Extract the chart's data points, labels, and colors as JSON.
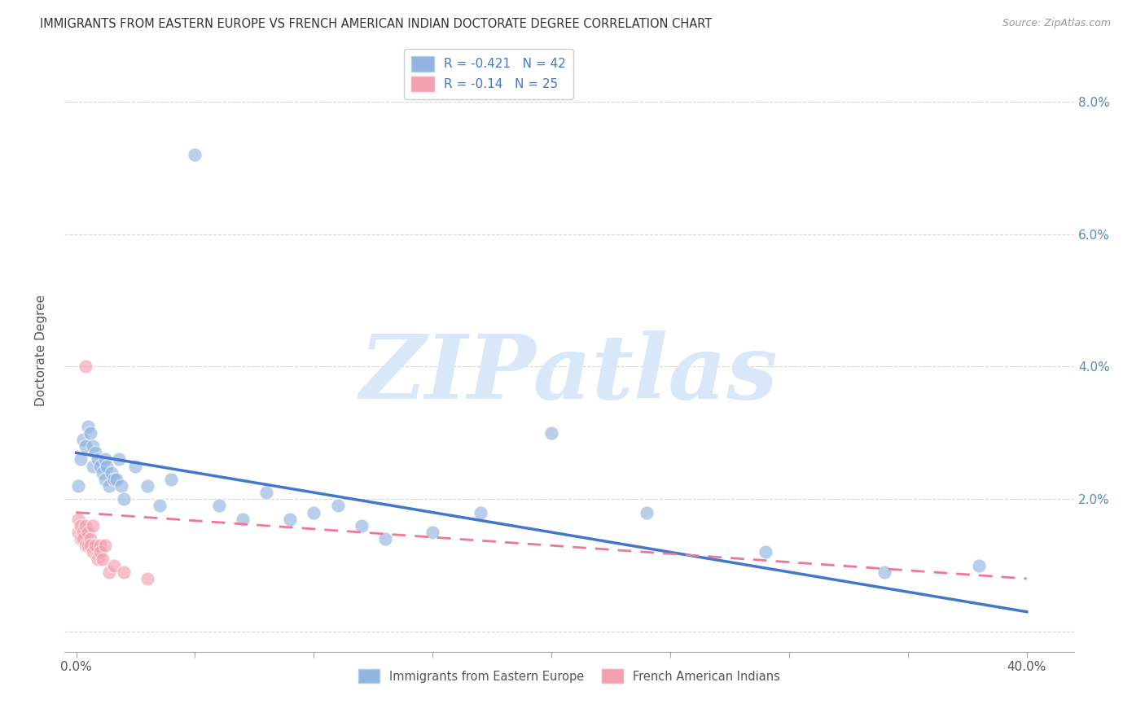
{
  "title": "IMMIGRANTS FROM EASTERN EUROPE VS FRENCH AMERICAN INDIAN DOCTORATE DEGREE CORRELATION CHART",
  "source": "Source: ZipAtlas.com",
  "ylabel": "Doctorate Degree",
  "xlim": [
    -0.005,
    0.42
  ],
  "ylim": [
    -0.003,
    0.088
  ],
  "x_tick_vals": [
    0.0,
    0.05,
    0.1,
    0.15,
    0.2,
    0.25,
    0.3,
    0.35,
    0.4
  ],
  "y_tick_vals": [
    0.0,
    0.02,
    0.04,
    0.06,
    0.08
  ],
  "y_tick_labels_right": [
    "",
    "2.0%",
    "4.0%",
    "6.0%",
    "8.0%"
  ],
  "blue_R": -0.421,
  "blue_N": 42,
  "pink_R": -0.14,
  "pink_N": 25,
  "blue_dot_color": "#92B4E0",
  "pink_dot_color": "#F4A0B0",
  "blue_line_color": "#4477CC",
  "pink_line_color": "#EE7799",
  "grid_color": "#CCCCCC",
  "watermark_color": "#D8E8F8",
  "watermark_text": "ZIPatlas",
  "legend_label_blue": "Immigrants from Eastern Europe",
  "legend_label_pink": "French American Indians",
  "blue_line_x0": 0.0,
  "blue_line_y0": 0.027,
  "blue_line_x1": 0.4,
  "blue_line_y1": 0.003,
  "pink_line_x0": 0.0,
  "pink_line_y0": 0.018,
  "pink_line_x1": 0.4,
  "pink_line_y1": 0.008,
  "blue_x": [
    0.001,
    0.002,
    0.003,
    0.004,
    0.005,
    0.006,
    0.007,
    0.007,
    0.008,
    0.009,
    0.01,
    0.011,
    0.012,
    0.012,
    0.013,
    0.014,
    0.015,
    0.016,
    0.017,
    0.018,
    0.019,
    0.02,
    0.025,
    0.03,
    0.035,
    0.04,
    0.05,
    0.06,
    0.07,
    0.08,
    0.09,
    0.1,
    0.11,
    0.12,
    0.13,
    0.15,
    0.17,
    0.2,
    0.24,
    0.29,
    0.34,
    0.38
  ],
  "blue_y": [
    0.022,
    0.026,
    0.029,
    0.028,
    0.031,
    0.03,
    0.028,
    0.025,
    0.027,
    0.026,
    0.025,
    0.024,
    0.026,
    0.023,
    0.025,
    0.022,
    0.024,
    0.023,
    0.023,
    0.026,
    0.022,
    0.02,
    0.025,
    0.022,
    0.019,
    0.023,
    0.072,
    0.019,
    0.017,
    0.021,
    0.017,
    0.018,
    0.019,
    0.016,
    0.014,
    0.015,
    0.018,
    0.03,
    0.018,
    0.012,
    0.009,
    0.01
  ],
  "pink_x": [
    0.001,
    0.001,
    0.002,
    0.002,
    0.003,
    0.003,
    0.004,
    0.004,
    0.004,
    0.005,
    0.005,
    0.006,
    0.006,
    0.007,
    0.007,
    0.008,
    0.009,
    0.01,
    0.01,
    0.011,
    0.012,
    0.014,
    0.016,
    0.02,
    0.03
  ],
  "pink_y": [
    0.017,
    0.015,
    0.016,
    0.014,
    0.015,
    0.014,
    0.04,
    0.016,
    0.013,
    0.015,
    0.013,
    0.014,
    0.013,
    0.016,
    0.012,
    0.013,
    0.011,
    0.013,
    0.012,
    0.011,
    0.013,
    0.009,
    0.01,
    0.009,
    0.008
  ]
}
